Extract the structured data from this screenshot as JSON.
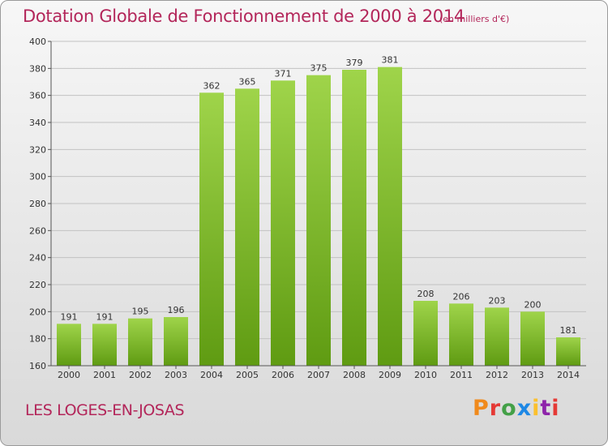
{
  "header": {
    "title": "Dotation Globale de Fonctionnement de 2000 à 2014",
    "subtitle": "(en milliers d'€)"
  },
  "footer": {
    "commune": "LES LOGES-EN-JOSAS",
    "logo_letters": [
      "P",
      "r",
      "o",
      "x",
      "i",
      "t",
      "i"
    ],
    "logo_colors": [
      "#f08a1c",
      "#e53935",
      "#43a047",
      "#1e88e5",
      "#fbc02d",
      "#8e24aa",
      "#e53935"
    ]
  },
  "colors": {
    "title": "#b3265a",
    "bar_light": "#9fd44a",
    "bar_dark": "#5f9b12",
    "grid": "#c2c2c2"
  },
  "chart_data": {
    "type": "bar",
    "categories": [
      "2000",
      "2001",
      "2002",
      "2003",
      "2004",
      "2005",
      "2006",
      "2007",
      "2008",
      "2009",
      "2010",
      "2011",
      "2012",
      "2013",
      "2014"
    ],
    "values": [
      191,
      191,
      195,
      196,
      362,
      365,
      371,
      375,
      379,
      381,
      208,
      206,
      203,
      200,
      181
    ],
    "ylim": [
      160,
      400
    ],
    "yticks": [
      160,
      180,
      200,
      220,
      240,
      260,
      280,
      300,
      320,
      340,
      360,
      380,
      400
    ],
    "grid": true
  }
}
